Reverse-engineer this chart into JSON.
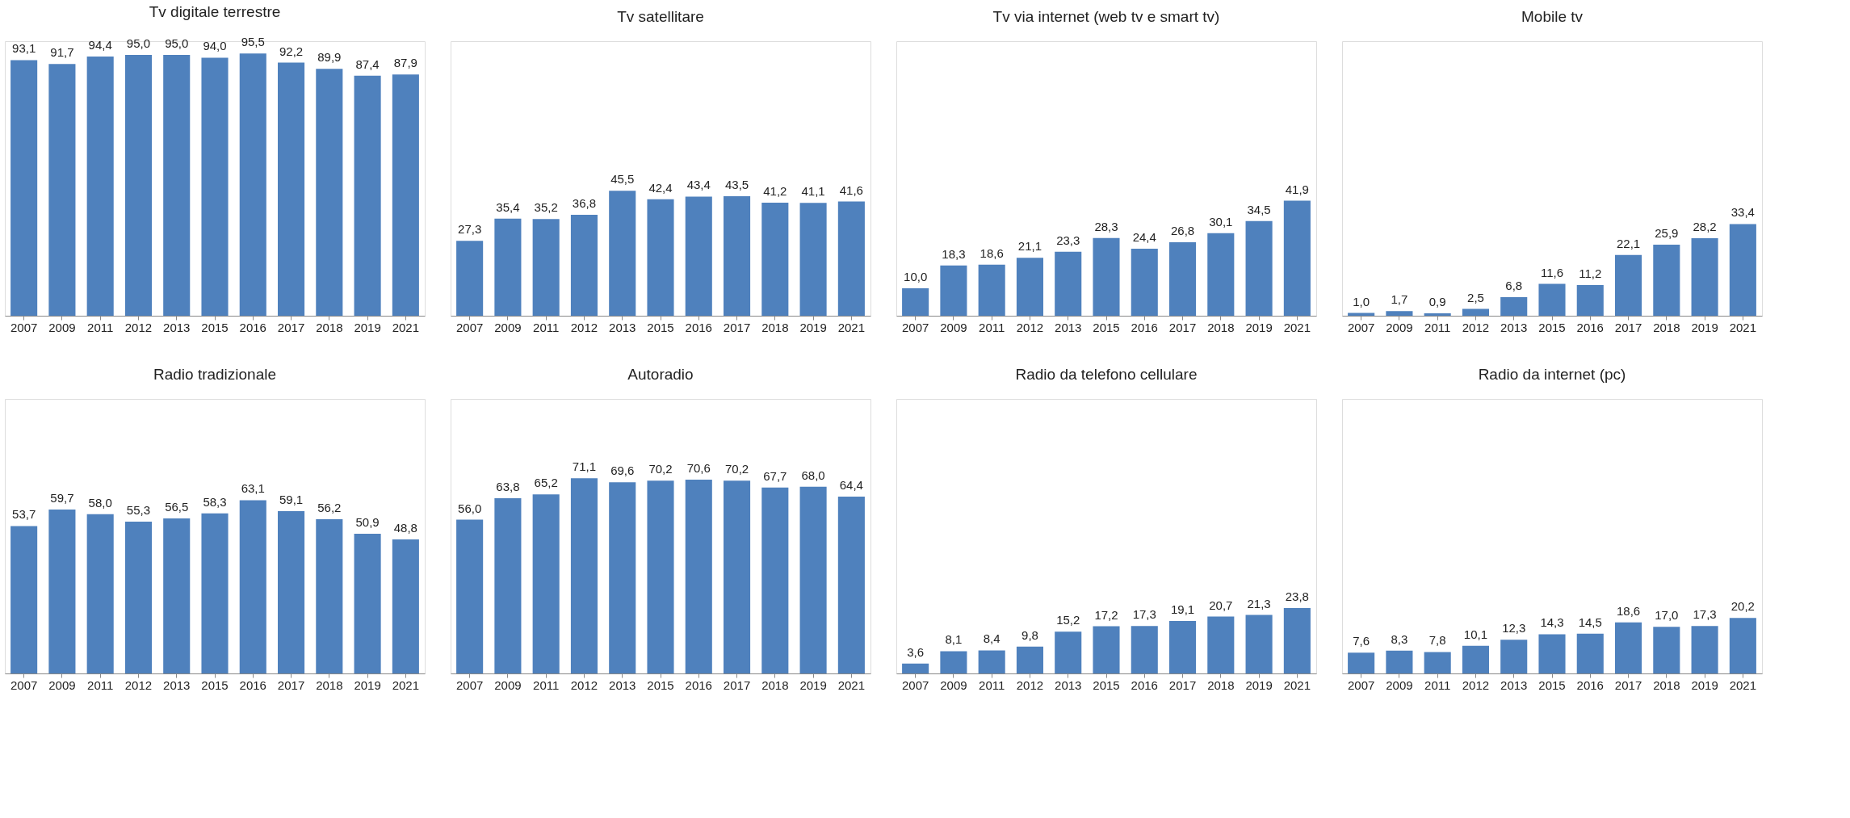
{
  "chart_data": [
    {
      "type": "bar",
      "title": "Tv digitale terrestre",
      "categories": [
        "2007",
        "2009",
        "2011",
        "2012",
        "2013",
        "2015",
        "2016",
        "2017",
        "2018",
        "2019",
        "2021"
      ],
      "values": [
        93.1,
        91.7,
        94.4,
        95.0,
        95.0,
        94.0,
        95.5,
        92.2,
        89.9,
        87.4,
        87.9
      ],
      "value_labels": [
        "93,1",
        "91,7",
        "94,4",
        "95,0",
        "95,0",
        "94,0",
        "95,5",
        "92,2",
        "89,9",
        "87,4",
        "87,9"
      ],
      "color": "#4f81bd",
      "ylim": [
        0,
        100
      ],
      "tick_labels": "x"
    },
    {
      "type": "bar",
      "title": "Tv satellitare",
      "categories": [
        "2007",
        "2009",
        "2011",
        "2012",
        "2013",
        "2015",
        "2016",
        "2017",
        "2018",
        "2019",
        "2021"
      ],
      "values": [
        27.3,
        35.4,
        35.2,
        36.8,
        45.5,
        42.4,
        43.4,
        43.5,
        41.2,
        41.1,
        41.6
      ],
      "value_labels": [
        "27,3",
        "35,4",
        "35,2",
        "36,8",
        "45,5",
        "42,4",
        "43,4",
        "43,5",
        "41,2",
        "41,1",
        "41,6"
      ],
      "color": "#4f81bd",
      "ylim": [
        0,
        100
      ],
      "tick_labels": "x"
    },
    {
      "type": "bar",
      "title": "Tv via internet (web tv e smart tv)",
      "categories": [
        "2007",
        "2009",
        "2011",
        "2012",
        "2013",
        "2015",
        "2016",
        "2017",
        "2018",
        "2019",
        "2021"
      ],
      "values": [
        10.0,
        18.3,
        18.6,
        21.1,
        23.3,
        28.3,
        24.4,
        26.8,
        30.1,
        34.5,
        41.9
      ],
      "value_labels": [
        "10,0",
        "18,3",
        "18,6",
        "21,1",
        "23,3",
        "28,3",
        "24,4",
        "26,8",
        "30,1",
        "34,5",
        "41,9"
      ],
      "color": "#4f81bd",
      "ylim": [
        0,
        100
      ],
      "tick_labels": "x"
    },
    {
      "type": "bar",
      "title": "Mobile tv",
      "categories": [
        "2007",
        "2009",
        "2011",
        "2012",
        "2013",
        "2015",
        "2016",
        "2017",
        "2018",
        "2019",
        "2021"
      ],
      "values": [
        1.0,
        1.7,
        0.9,
        2.5,
        6.8,
        11.6,
        11.2,
        22.1,
        25.9,
        28.2,
        33.4
      ],
      "value_labels": [
        "1,0",
        "1,7",
        "0,9",
        "2,5",
        "6,8",
        "11,6",
        "11,2",
        "22,1",
        "25,9",
        "28,2",
        "33,4"
      ],
      "color": "#4f81bd",
      "ylim": [
        0,
        100
      ],
      "tick_labels": "x"
    },
    {
      "type": "bar",
      "title": "Radio tradizionale",
      "categories": [
        "2007",
        "2009",
        "2011",
        "2012",
        "2013",
        "2015",
        "2016",
        "2017",
        "2018",
        "2019",
        "2021"
      ],
      "values": [
        53.7,
        59.7,
        58.0,
        55.3,
        56.5,
        58.3,
        63.1,
        59.1,
        56.2,
        50.9,
        48.8
      ],
      "value_labels": [
        "53,7",
        "59,7",
        "58,0",
        "55,3",
        "56,5",
        "58,3",
        "63,1",
        "59,1",
        "56,2",
        "50,9",
        "48,8"
      ],
      "color": "#4f81bd",
      "ylim": [
        0,
        100
      ],
      "tick_labels": "x"
    },
    {
      "type": "bar",
      "title": "Autoradio",
      "categories": [
        "2007",
        "2009",
        "2011",
        "2012",
        "2013",
        "2015",
        "2016",
        "2017",
        "2018",
        "2019",
        "2021"
      ],
      "values": [
        56.0,
        63.8,
        65.2,
        71.1,
        69.6,
        70.2,
        70.6,
        70.2,
        67.7,
        68.0,
        64.4
      ],
      "value_labels": [
        "56,0",
        "63,8",
        "65,2",
        "71,1",
        "69,6",
        "70,2",
        "70,6",
        "70,2",
        "67,7",
        "68,0",
        "64,4"
      ],
      "color": "#4f81bd",
      "ylim": [
        0,
        100
      ],
      "tick_labels": "x"
    },
    {
      "type": "bar",
      "title": "Radio da telefono cellulare",
      "categories": [
        "2007",
        "2009",
        "2011",
        "2012",
        "2013",
        "2015",
        "2016",
        "2017",
        "2018",
        "2019",
        "2021"
      ],
      "values": [
        3.6,
        8.1,
        8.4,
        9.8,
        15.2,
        17.2,
        17.3,
        19.1,
        20.7,
        21.3,
        23.8
      ],
      "value_labels": [
        "3,6",
        "8,1",
        "8,4",
        "9,8",
        "15,2",
        "17,2",
        "17,3",
        "19,1",
        "20,7",
        "21,3",
        "23,8"
      ],
      "color": "#4f81bd",
      "ylim": [
        0,
        100
      ],
      "tick_labels": "x"
    },
    {
      "type": "bar",
      "title": "Radio da internet (pc)",
      "categories": [
        "2007",
        "2009",
        "2011",
        "2012",
        "2013",
        "2015",
        "2016",
        "2017",
        "2018",
        "2019",
        "2021"
      ],
      "values": [
        7.6,
        8.3,
        7.8,
        10.1,
        12.3,
        14.3,
        14.5,
        18.6,
        17.0,
        17.3,
        20.2
      ],
      "value_labels": [
        "7,6",
        "8,3",
        "7,8",
        "10,1",
        "12,3",
        "14,3",
        "14,5",
        "18,6",
        "17,0",
        "17,3",
        "20,2"
      ],
      "color": "#4f81bd",
      "ylim": [
        0,
        100
      ],
      "tick_labels": "x"
    }
  ]
}
